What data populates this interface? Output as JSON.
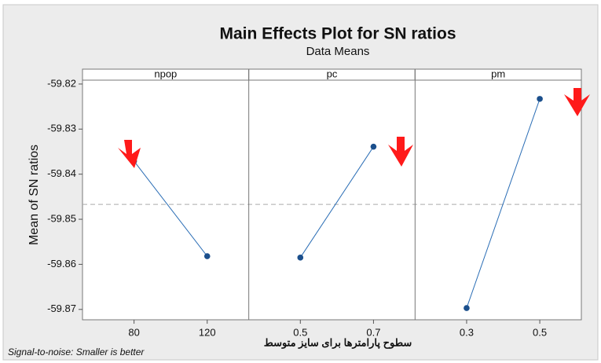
{
  "chart_data": {
    "type": "line",
    "title": "Main Effects Plot for SN ratios",
    "subtitle": "Data Means",
    "y_label": "Mean of SN ratios",
    "x_label": "سطوح پارامترها برای سایز متوسط",
    "footnote": "Signal-to-noise: Smaller is better",
    "color": "#2a6db5",
    "marker_color": "#1b4f8c",
    "ylim": [
      -59.8723,
      -59.8167
    ],
    "yticks": [
      -59.82,
      -59.83,
      -59.84,
      -59.85,
      -59.86,
      -59.87
    ],
    "reference_line": -59.8467,
    "panels": [
      {
        "name": "npop",
        "categories": [
          "80",
          "120"
        ],
        "values": [
          -59.8371,
          -59.8582
        ]
      },
      {
        "name": "pc",
        "categories": [
          "0.5",
          "0.7"
        ],
        "values": [
          -59.8585,
          -59.8339
        ]
      },
      {
        "name": "pm",
        "categories": [
          "0.3",
          "0.5"
        ],
        "values": [
          -59.8697,
          -59.8233
        ]
      }
    ]
  }
}
